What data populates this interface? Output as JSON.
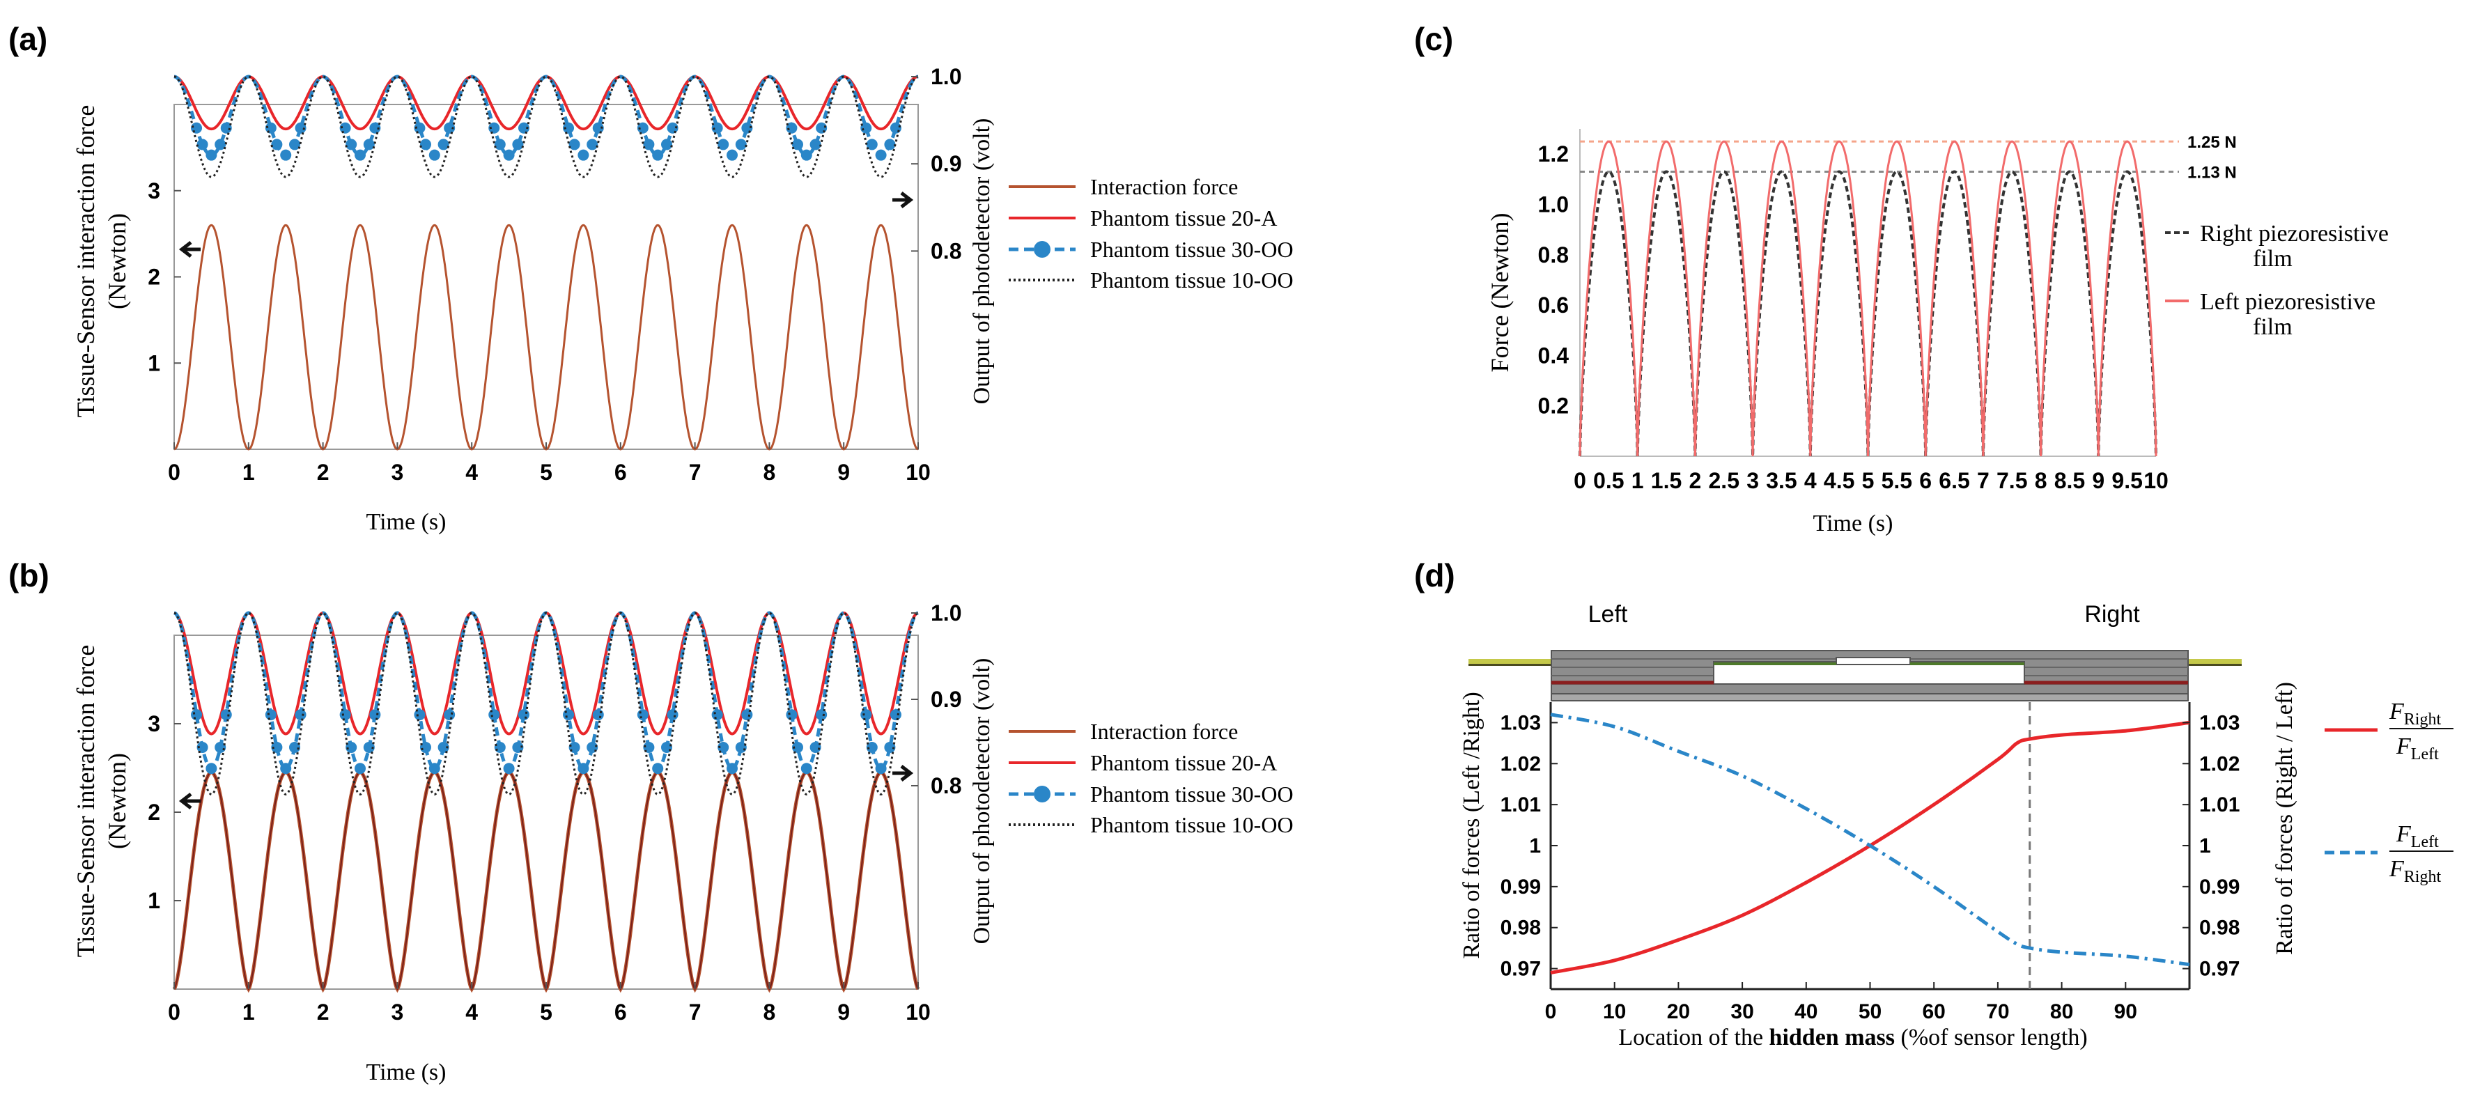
{
  "colors": {
    "interaction_force": "#b5532f",
    "tissue_20A": "#e8262a",
    "tissue_30OO": "#2a86c8",
    "tissue_10OO": "#222222",
    "right_film": "#333333",
    "left_film": "#f26b6b",
    "guide_125": "#f5a58a",
    "guide_113": "#888888",
    "ratio_right": "#e8262a",
    "ratio_left": "#2a86c8"
  },
  "panels": {
    "a": {
      "label": "(a)"
    },
    "b": {
      "label": "(b)"
    },
    "c": {
      "label": "(c)"
    },
    "d": {
      "label": "(d)"
    }
  },
  "chart_data": [
    {
      "id": "a",
      "type": "line",
      "title": "",
      "xlabel": "Time (s)",
      "ylabel": "Tissue-Sensor interaction force (Newton)",
      "ylabel_line1": "Tissue-Sensor interaction force",
      "ylabel_line2": "(Newton)",
      "y2label": "Output of photodetector (volt)",
      "xlim": [
        0,
        10
      ],
      "ylim": [
        0,
        4
      ],
      "y2lim": [
        0.75,
        1.0
      ],
      "xticks": [
        "0",
        "1",
        "2",
        "3",
        "4",
        "5",
        "6",
        "7",
        "8",
        "9",
        "10"
      ],
      "yticks": [
        "1",
        "2",
        "3"
      ],
      "y2ticks": [
        "0.8",
        "0.9",
        "1.0"
      ],
      "period_s": 1.0,
      "series": [
        {
          "name": "Interaction force",
          "axis": "left",
          "min": 0.0,
          "max": 2.6,
          "phase": "peak_at_half_second"
        },
        {
          "name": "Phantom tissue 20-A",
          "axis": "right",
          "min": 0.94,
          "max": 1.0,
          "phase": "trough_at_half_second"
        },
        {
          "name": "Phantom tissue 30-OO",
          "axis": "right",
          "min": 0.91,
          "max": 1.0,
          "phase": "trough_at_half_second"
        },
        {
          "name": "Phantom tissue 10-OO",
          "axis": "right",
          "min": 0.885,
          "max": 1.0,
          "phase": "trough_at_half_second"
        }
      ],
      "legend": [
        "Interaction force",
        "Phantom tissue 20-A",
        "Phantom tissue 30-OO",
        "Phantom tissue 10-OO"
      ]
    },
    {
      "id": "b",
      "type": "line",
      "title": "",
      "xlabel": "Time (s)",
      "ylabel": "Tissue-Sensor interaction force (Newton)",
      "ylabel_line1": "Tissue-Sensor interaction force",
      "ylabel_line2": "(Newton)",
      "y2label": "Output of photodetector (volt)",
      "xlim": [
        0,
        10
      ],
      "ylim": [
        0,
        4
      ],
      "y2lim": [
        0.75,
        1.0
      ],
      "xticks": [
        "0",
        "1",
        "2",
        "3",
        "4",
        "5",
        "6",
        "7",
        "8",
        "9",
        "10"
      ],
      "yticks": [
        "1",
        "2",
        "3"
      ],
      "y2ticks": [
        "0.8",
        "0.9",
        "1.0"
      ],
      "period_s": 1.0,
      "series": [
        {
          "name": "Interaction force",
          "axis": "left",
          "min": 0.0,
          "max": 2.45,
          "phase": "peak_at_half_second"
        },
        {
          "name": "Phantom tissue 20-A",
          "axis": "right",
          "min": 0.86,
          "max": 1.0,
          "phase": "trough_at_half_second"
        },
        {
          "name": "Phantom tissue 30-OO",
          "axis": "right",
          "min": 0.82,
          "max": 1.0,
          "phase": "trough_at_half_second"
        },
        {
          "name": "Phantom tissue 10-OO",
          "axis": "right",
          "min": 0.79,
          "max": 1.0,
          "phase": "trough_at_half_second"
        }
      ],
      "legend": [
        "Interaction force",
        "Phantom tissue 20-A",
        "Phantom tissue 30-OO",
        "Phantom tissue 10-OO"
      ]
    },
    {
      "id": "c",
      "type": "line",
      "title": "",
      "xlabel": "Time (s)",
      "ylabel": "Force (Newton)",
      "xlim": [
        0,
        10
      ],
      "ylim": [
        0,
        1.3
      ],
      "xticks": [
        "0",
        "0.5",
        "1",
        "1.5",
        "2",
        "2.5",
        "3",
        "3.5",
        "4",
        "4.5",
        "5",
        "5.5",
        "6",
        "6.5",
        "7",
        "7.5",
        "8",
        "8.5",
        "9",
        "9.5",
        "10"
      ],
      "yticks": [
        "0.2",
        "0.4",
        "0.6",
        "0.8",
        "1.0",
        "1.2"
      ],
      "period_s": 1.0,
      "series": [
        {
          "name": "Right piezoresistive film",
          "min": 0.0,
          "max": 1.13
        },
        {
          "name": "Left piezoresistive film",
          "min": 0.0,
          "max": 1.25
        }
      ],
      "annotations": [
        {
          "label": "1.25 N",
          "y": 1.25
        },
        {
          "label": "1.13 N",
          "y": 1.13
        }
      ],
      "legend": [
        {
          "line1": "Right piezoresistive",
          "line2": "film"
        },
        {
          "line1": "Left piezoresistive",
          "line2": "film"
        }
      ]
    },
    {
      "id": "d",
      "type": "line",
      "title": "",
      "xlabel": "Location of the hidden mass  (%of sensor length)",
      "xlabel_pre": "Location of the ",
      "xlabel_bold": "hidden mass",
      "xlabel_post": "  (%of sensor length)",
      "ylabel": "Ratio of forces (Left /Right)",
      "y2label": "Ratio of forces (Right / Left)",
      "xlim": [
        0,
        100
      ],
      "ylim": [
        0.965,
        1.035
      ],
      "xticks": [
        "0",
        "10",
        "20",
        "30",
        "40",
        "50",
        "60",
        "70",
        "80",
        "90"
      ],
      "yticks": [
        "0.97",
        "0.98",
        "0.99",
        "1",
        "1.01",
        "1.02",
        "1.03"
      ],
      "y2ticks": [
        "0.97",
        "0.98",
        "0.99",
        "1",
        "1.01",
        "1.02",
        "1.03"
      ],
      "vline_x": 75,
      "sensor_labels": {
        "left": "Left",
        "right": "Right"
      },
      "series": [
        {
          "name": "F_Right / F_Left",
          "x": [
            0,
            10,
            20,
            30,
            40,
            50,
            60,
            70,
            73,
            75,
            80,
            90,
            100
          ],
          "y": [
            0.969,
            0.972,
            0.977,
            0.983,
            0.991,
            1.0,
            1.01,
            1.021,
            1.025,
            1.026,
            1.027,
            1.028,
            1.03
          ]
        },
        {
          "name": "F_Left / F_Right",
          "x": [
            0,
            10,
            20,
            30,
            40,
            50,
            60,
            70,
            73,
            75,
            80,
            90,
            100
          ],
          "y": [
            1.032,
            1.029,
            1.023,
            1.017,
            1.009,
            1.0,
            0.99,
            0.979,
            0.976,
            0.975,
            0.974,
            0.973,
            0.971
          ]
        }
      ],
      "legend": [
        {
          "num": "F",
          "num_sub": "Right",
          "den": "F",
          "den_sub": "Left"
        },
        {
          "num": "F",
          "num_sub": "Left",
          "den": "F",
          "den_sub": "Right"
        }
      ]
    }
  ]
}
